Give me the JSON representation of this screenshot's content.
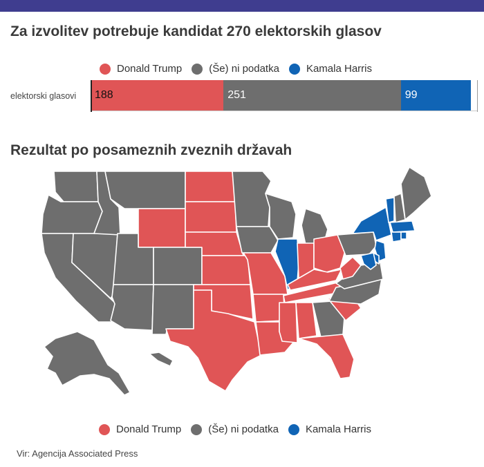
{
  "title": "Za izvolitev potrebuje kandidat 270 elektorskih glasov",
  "subtitle": "Rezultat po posameznih zveznih državah",
  "source": "Vir: Agencija Associated Press",
  "colors": {
    "trump": "#e05556",
    "none": "#6e6e6e",
    "harris": "#1064b5",
    "header": "#3f3d8f"
  },
  "legend": [
    {
      "label": "Donald Trump",
      "color": "#e05556"
    },
    {
      "label": "(Še) ni podatka",
      "color": "#6e6e6e"
    },
    {
      "label": "Kamala Harris",
      "color": "#1064b5"
    }
  ],
  "chart_data": {
    "type": "bar",
    "orientation": "horizontal-stacked",
    "categories": [
      "elektorski glasovi"
    ],
    "series": [
      {
        "name": "Donald Trump",
        "values": [
          188
        ]
      },
      {
        "name": "(Še) ni podatka",
        "values": [
          251
        ]
      },
      {
        "name": "Kamala Harris",
        "values": [
          99
        ]
      }
    ],
    "xlim": [
      0,
      538
    ],
    "threshold": 270
  },
  "map_data": {
    "type": "choropleth",
    "Donald Trump": [
      "WY",
      "ND",
      "SD",
      "NE",
      "KS",
      "OK",
      "TX",
      "AR",
      "LA",
      "MS",
      "AL",
      "TN",
      "KY",
      "WV",
      "IN",
      "OH",
      "SC",
      "FL",
      "MO"
    ],
    "(Še) ni podatka": [
      "WA",
      "OR",
      "CA",
      "NV",
      "ID",
      "MT",
      "UT",
      "AZ",
      "CO",
      "NM",
      "MN",
      "IA",
      "WI",
      "MI",
      "GA",
      "NC",
      "VA",
      "PA",
      "ME",
      "NH",
      "AK",
      "HI"
    ],
    "Kamala Harris": [
      "IL",
      "NY",
      "VT",
      "MA",
      "CT",
      "RI",
      "NJ",
      "DE",
      "MD"
    ]
  }
}
